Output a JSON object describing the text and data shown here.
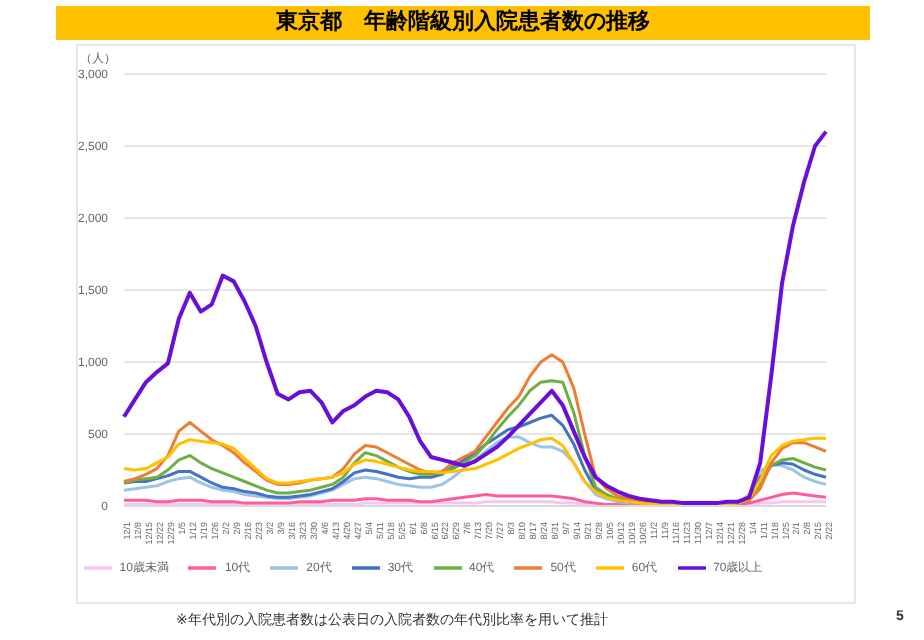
{
  "chart_data": {
    "type": "line",
    "title": "東京都　年齢階級別入院患者数の推移",
    "ylabel": "（人）",
    "categories": [
      "12/1",
      "12/8",
      "12/15",
      "12/22",
      "12/29",
      "1/5",
      "1/12",
      "1/19",
      "1/26",
      "2/2",
      "2/9",
      "2/16",
      "2/23",
      "3/2",
      "3/9",
      "3/16",
      "3/23",
      "3/30",
      "4/6",
      "4/13",
      "4/20",
      "4/27",
      "5/4",
      "5/11",
      "5/18",
      "5/25",
      "6/1",
      "6/8",
      "6/15",
      "6/22",
      "6/29",
      "7/6",
      "7/13",
      "7/20",
      "7/27",
      "8/3",
      "8/10",
      "8/17",
      "8/24",
      "8/31",
      "9/7",
      "9/14",
      "9/21",
      "9/28",
      "10/5",
      "10/12",
      "10/19",
      "10/26",
      "11/2",
      "11/9",
      "11/16",
      "11/23",
      "11/30",
      "12/7",
      "12/14",
      "12/21",
      "12/28",
      "1/4",
      "1/11",
      "1/18",
      "1/25",
      "2/1",
      "2/8",
      "2/15",
      "2/22"
    ],
    "series": [
      {
        "name": "10歳未満",
        "color": "#f7c6ee",
        "values": [
          10,
          10,
          10,
          10,
          10,
          10,
          10,
          10,
          10,
          10,
          10,
          10,
          10,
          10,
          10,
          10,
          10,
          10,
          10,
          10,
          10,
          10,
          20,
          20,
          20,
          20,
          20,
          20,
          20,
          20,
          20,
          20,
          20,
          30,
          30,
          30,
          30,
          30,
          30,
          30,
          20,
          20,
          10,
          10,
          10,
          10,
          10,
          10,
          10,
          10,
          10,
          10,
          10,
          10,
          10,
          10,
          10,
          10,
          20,
          20,
          30,
          30,
          30,
          30,
          30
        ]
      },
      {
        "name": "10代",
        "color": "#ff5c9d",
        "values": [
          40,
          40,
          40,
          30,
          30,
          40,
          40,
          40,
          30,
          30,
          30,
          20,
          20,
          20,
          20,
          20,
          30,
          30,
          30,
          40,
          40,
          40,
          50,
          50,
          40,
          40,
          40,
          30,
          30,
          40,
          50,
          60,
          70,
          80,
          70,
          70,
          70,
          70,
          70,
          70,
          60,
          50,
          30,
          20,
          10,
          10,
          10,
          10,
          10,
          10,
          10,
          10,
          10,
          10,
          10,
          10,
          10,
          20,
          40,
          60,
          80,
          90,
          80,
          70,
          60
        ]
      },
      {
        "name": "20代",
        "color": "#9dc3e6",
        "values": [
          110,
          120,
          130,
          140,
          170,
          190,
          200,
          160,
          130,
          110,
          100,
          80,
          70,
          60,
          50,
          50,
          60,
          70,
          90,
          110,
          150,
          190,
          200,
          190,
          170,
          150,
          140,
          130,
          130,
          150,
          200,
          260,
          320,
          380,
          440,
          480,
          480,
          440,
          410,
          410,
          380,
          300,
          170,
          80,
          50,
          30,
          20,
          20,
          10,
          10,
          10,
          10,
          10,
          10,
          10,
          10,
          20,
          80,
          240,
          290,
          280,
          250,
          200,
          170,
          150
        ]
      },
      {
        "name": "30代",
        "color": "#4472c4",
        "values": [
          160,
          170,
          170,
          190,
          210,
          240,
          240,
          200,
          160,
          130,
          120,
          100,
          90,
          70,
          60,
          60,
          70,
          80,
          100,
          120,
          170,
          230,
          250,
          240,
          220,
          200,
          190,
          200,
          200,
          220,
          270,
          320,
          370,
          430,
          480,
          530,
          550,
          580,
          610,
          630,
          560,
          430,
          250,
          110,
          70,
          40,
          30,
          20,
          20,
          10,
          10,
          10,
          10,
          10,
          10,
          10,
          20,
          40,
          200,
          280,
          300,
          290,
          250,
          220,
          200
        ]
      },
      {
        "name": "40代",
        "color": "#70ad47",
        "values": [
          160,
          180,
          190,
          200,
          250,
          320,
          350,
          300,
          260,
          230,
          200,
          170,
          140,
          110,
          90,
          90,
          100,
          110,
          130,
          150,
          200,
          300,
          370,
          350,
          310,
          270,
          240,
          220,
          220,
          230,
          260,
          300,
          350,
          430,
          530,
          620,
          700,
          800,
          860,
          870,
          860,
          650,
          350,
          130,
          80,
          50,
          40,
          30,
          20,
          10,
          10,
          10,
          10,
          10,
          10,
          10,
          20,
          40,
          150,
          280,
          320,
          330,
          300,
          270,
          250
        ]
      },
      {
        "name": "50代",
        "color": "#ed7d31",
        "values": [
          170,
          190,
          220,
          260,
          350,
          520,
          580,
          520,
          460,
          420,
          370,
          300,
          240,
          180,
          150,
          150,
          160,
          180,
          190,
          200,
          260,
          360,
          420,
          410,
          370,
          330,
          290,
          250,
          230,
          240,
          300,
          340,
          380,
          480,
          580,
          680,
          760,
          900,
          1000,
          1050,
          1000,
          820,
          500,
          200,
          120,
          70,
          50,
          30,
          20,
          20,
          10,
          10,
          10,
          10,
          10,
          20,
          20,
          40,
          120,
          300,
          400,
          440,
          440,
          410,
          380
        ]
      },
      {
        "name": "60代",
        "color": "#ffc000",
        "values": [
          260,
          250,
          260,
          300,
          340,
          430,
          460,
          450,
          440,
          430,
          400,
          330,
          260,
          190,
          160,
          160,
          170,
          180,
          190,
          200,
          230,
          290,
          320,
          310,
          290,
          270,
          250,
          240,
          240,
          230,
          240,
          250,
          260,
          290,
          320,
          360,
          400,
          430,
          460,
          470,
          420,
          300,
          170,
          100,
          60,
          40,
          30,
          20,
          10,
          10,
          10,
          10,
          10,
          10,
          10,
          10,
          20,
          50,
          180,
          350,
          420,
          450,
          460,
          470,
          470
        ]
      },
      {
        "name": "70歳以上",
        "color": "#6a0fd8",
        "values": [
          620,
          740,
          860,
          930,
          990,
          1300,
          1480,
          1350,
          1400,
          1600,
          1560,
          1420,
          1250,
          1000,
          780,
          740,
          790,
          800,
          720,
          580,
          660,
          700,
          760,
          800,
          790,
          740,
          620,
          450,
          340,
          320,
          300,
          280,
          310,
          360,
          410,
          480,
          560,
          640,
          720,
          800,
          700,
          520,
          340,
          200,
          140,
          100,
          70,
          50,
          40,
          30,
          30,
          20,
          20,
          20,
          20,
          30,
          30,
          60,
          300,
          900,
          1550,
          1950,
          2250,
          2500,
          2600
        ]
      }
    ],
    "ylim": [
      0,
      3000
    ],
    "yticks": [
      0,
      500,
      {
        "value": 1000,
        "label": "1,000"
      },
      {
        "value": 1500,
        "label": "1,500"
      },
      {
        "value": 2000,
        "label": "2,000"
      },
      {
        "value": 2500,
        "label": "2,500"
      },
      {
        "value": 3000,
        "label": "3,000"
      }
    ],
    "grid": "y",
    "legend": "bottom",
    "marker": "none",
    "line_style": "solid",
    "annotations": [
      "※年代別の入院患者数は公表日の入院者数の年代別比率を用いて推計",
      "5"
    ]
  }
}
